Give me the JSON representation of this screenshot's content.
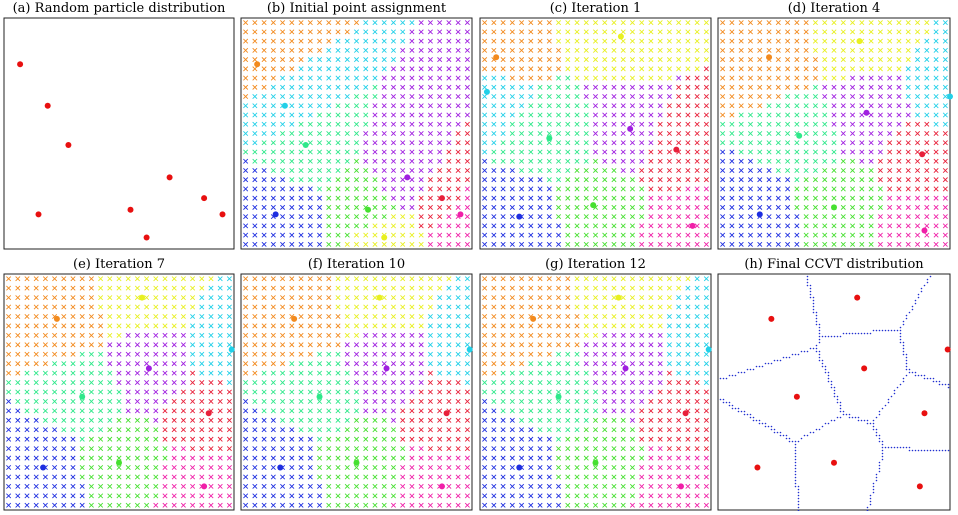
{
  "panels": [
    {
      "title": "(a) Random particle distribution"
    },
    {
      "title": "(b) Initial point assignment"
    },
    {
      "title": "(c) Iteration 1"
    },
    {
      "title": "(d) Iteration 4"
    },
    {
      "title": "(e) Iteration 7"
    },
    {
      "title": "(f) Iteration 10"
    },
    {
      "title": "(g) Iteration 12"
    },
    {
      "title": "(h) Final CCVT distribution"
    }
  ]
}
